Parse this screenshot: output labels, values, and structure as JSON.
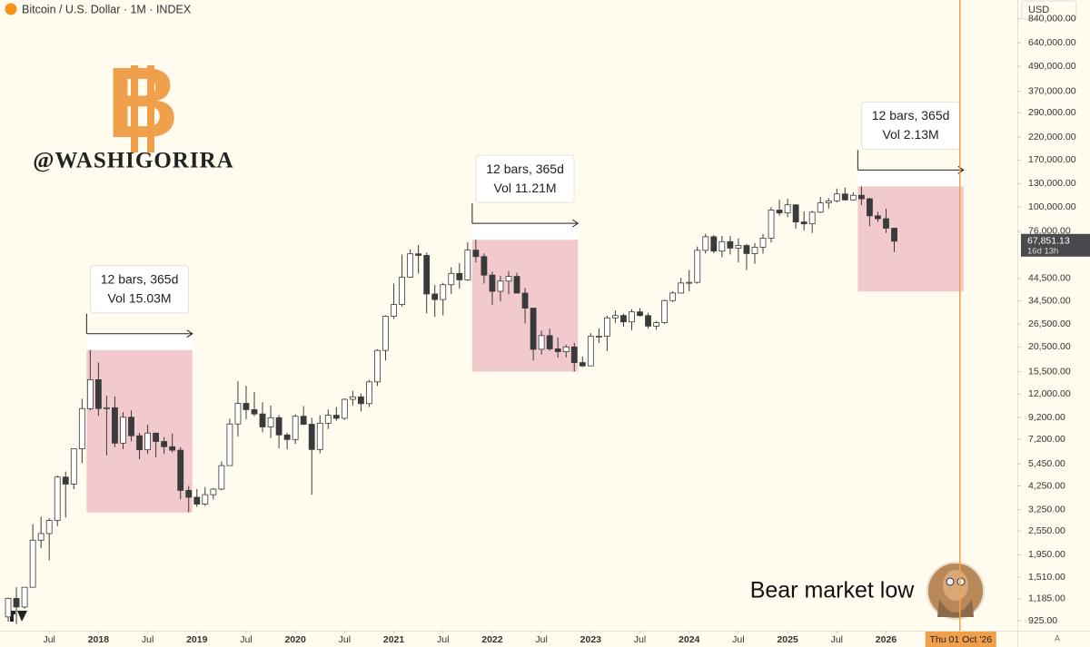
{
  "chart_data": {
    "type": "candlestick",
    "title": "Bitcoin / U.S. Dollar · 1M · INDEX",
    "currency": "USD",
    "x": [
      "2017-02",
      "2017-03",
      "2017-04",
      "2017-05",
      "2017-06",
      "2017-07",
      "2017-08",
      "2017-09",
      "2017-10",
      "2017-11",
      "2017-12",
      "2018-01",
      "2018-02",
      "2018-03",
      "2018-04",
      "2018-05",
      "2018-06",
      "2018-07",
      "2018-08",
      "2018-09",
      "2018-10",
      "2018-11",
      "2018-12",
      "2019-01",
      "2019-02",
      "2019-03",
      "2019-04",
      "2019-05",
      "2019-06",
      "2019-07",
      "2019-08",
      "2019-09",
      "2019-10",
      "2019-11",
      "2019-12",
      "2020-01",
      "2020-02",
      "2020-03",
      "2020-04",
      "2020-05",
      "2020-06",
      "2020-07",
      "2020-08",
      "2020-09",
      "2020-10",
      "2020-11",
      "2020-12",
      "2021-01",
      "2021-02",
      "2021-03",
      "2021-04",
      "2021-05",
      "2021-06",
      "2021-07",
      "2021-08",
      "2021-09",
      "2021-10",
      "2021-11",
      "2021-12",
      "2022-01",
      "2022-02",
      "2022-03",
      "2022-04",
      "2022-05",
      "2022-06",
      "2022-07",
      "2022-08",
      "2022-09",
      "2022-10",
      "2022-11",
      "2022-12",
      "2023-01",
      "2023-02",
      "2023-03",
      "2023-04",
      "2023-05",
      "2023-06",
      "2023-07",
      "2023-08",
      "2023-09",
      "2023-10",
      "2023-11",
      "2023-12",
      "2024-01",
      "2024-02",
      "2024-03",
      "2024-04",
      "2024-05",
      "2024-06",
      "2024-07",
      "2024-08",
      "2024-09",
      "2024-10",
      "2024-11",
      "2024-12",
      "2025-01",
      "2025-02",
      "2025-03",
      "2025-04",
      "2025-05",
      "2025-06",
      "2025-07",
      "2025-08",
      "2025-09",
      "2025-10",
      "2025-11",
      "2025-12",
      "2026-01",
      "2026-02"
    ],
    "open": [
      965,
      1190,
      1080,
      1350,
      2300,
      2480,
      2875,
      4700,
      4340,
      6470,
      10200,
      14150,
      10200,
      10300,
      6900,
      9250,
      7500,
      6400,
      7730,
      7030,
      6625,
      6370,
      4040,
      3740,
      3460,
      3850,
      4100,
      5350,
      8570,
      10820,
      10080,
      9600,
      8290,
      9200,
      7570,
      7190,
      9350,
      8540,
      6420,
      8640,
      9460,
      9140,
      11330,
      11650,
      10790,
      13800,
      19700,
      28990,
      33140,
      45140,
      58800,
      57750,
      37330,
      35040,
      41460,
      47100,
      43800,
      61300,
      57000,
      46200,
      38480,
      43190,
      45540,
      37700,
      31800,
      19950,
      23300,
      20050,
      19430,
      20500,
      17170,
      16540,
      23140,
      23150,
      28480,
      29250,
      27220,
      30480,
      29230,
      25940,
      26970,
      34650,
      37730,
      42270,
      42580,
      61180,
      71330,
      60640,
      67500,
      62700,
      64600,
      58970,
      63330,
      70200,
      96450,
      93400,
      102400,
      84350,
      82550,
      94200,
      104600,
      107100,
      115800,
      108250,
      114050,
      109600,
      90400,
      87500,
      78600
    ],
    "high": [
      1200,
      1350,
      1350,
      2760,
      3000,
      2950,
      4770,
      5000,
      6470,
      11400,
      19800,
      17200,
      11800,
      11700,
      9800,
      9990,
      7760,
      8500,
      7760,
      7400,
      7680,
      6600,
      4250,
      4100,
      4200,
      4150,
      5600,
      9100,
      13880,
      13200,
      12320,
      10950,
      10550,
      9500,
      7750,
      9560,
      10500,
      9200,
      9460,
      10080,
      10380,
      11450,
      12470,
      12090,
      14100,
      19940,
      29300,
      41950,
      58350,
      61800,
      64900,
      59600,
      41300,
      42400,
      50500,
      52900,
      67000,
      69000,
      59100,
      47990,
      45800,
      48200,
      47450,
      40000,
      31950,
      24650,
      25200,
      22800,
      20990,
      21480,
      18400,
      23950,
      25250,
      29200,
      31000,
      29850,
      31400,
      31800,
      30200,
      27500,
      35000,
      38450,
      44730,
      48950,
      63900,
      73800,
      72800,
      71950,
      72000,
      70000,
      65600,
      66500,
      73600,
      99800,
      108300,
      109600,
      102750,
      95000,
      95700,
      112000,
      110500,
      123200,
      124400,
      117900,
      126200,
      111000,
      94600,
      97900,
      79000
    ],
    "low": [
      915,
      890,
      1060,
      1350,
      2100,
      1830,
      2700,
      2970,
      4100,
      5500,
      10000,
      9400,
      6000,
      6600,
      6450,
      7050,
      5750,
      6100,
      5880,
      6100,
      6200,
      3650,
      3150,
      3350,
      3390,
      3650,
      4050,
      5330,
      7450,
      9070,
      9350,
      7800,
      7300,
      6500,
      6430,
      6850,
      8450,
      3850,
      6150,
      8100,
      8900,
      8980,
      10560,
      9880,
      10380,
      13200,
      17600,
      28130,
      32300,
      45000,
      47000,
      30000,
      28800,
      29300,
      37400,
      39600,
      43300,
      53300,
      42000,
      32900,
      34300,
      37200,
      37700,
      26700,
      17600,
      18800,
      19600,
      18150,
      18200,
      15500,
      16300,
      16500,
      21400,
      19550,
      26950,
      25800,
      24800,
      28900,
      25200,
      24900,
      26550,
      34100,
      37600,
      38500,
      41880,
      59000,
      59200,
      56550,
      58400,
      53500,
      49000,
      52550,
      58900,
      66800,
      90500,
      89200,
      78200,
      76600,
      74400,
      93300,
      98200,
      105100,
      107300,
      107250,
      102000,
      80500,
      84400,
      74500,
      60000
    ],
    "close": [
      1190,
      1080,
      1350,
      2300,
      2480,
      2875,
      4700,
      4340,
      6470,
      10200,
      14150,
      10200,
      10300,
      6900,
      9250,
      7500,
      6400,
      7730,
      7030,
      6625,
      6370,
      4040,
      3740,
      3460,
      3850,
      4100,
      5350,
      8570,
      10820,
      10080,
      9600,
      8290,
      9200,
      7570,
      7190,
      9350,
      8540,
      6420,
      8640,
      9460,
      9140,
      11330,
      11650,
      10790,
      13800,
      19700,
      28990,
      33140,
      45140,
      58800,
      57750,
      37330,
      35040,
      41460,
      47100,
      43800,
      61300,
      57000,
      46200,
      38480,
      43190,
      45540,
      37700,
      31800,
      19950,
      23300,
      20050,
      19430,
      20500,
      17170,
      16540,
      23140,
      23150,
      28480,
      29250,
      27220,
      30480,
      29230,
      25940,
      26970,
      34650,
      37730,
      42270,
      42580,
      61180,
      71330,
      60640,
      67500,
      62700,
      64600,
      58970,
      63330,
      70200,
      96450,
      93400,
      102400,
      84350,
      82550,
      94200,
      104600,
      107100,
      115800,
      108250,
      114050,
      109600,
      90400,
      87500,
      78600,
      67851.13
    ],
    "last_price": {
      "value": 67851.13,
      "label": "67,851.13"
    },
    "countdown": "16d 13h",
    "up_color": "#ffffff",
    "down_color": "#3a3a3c",
    "log_scale": true,
    "xlim": [
      "2017-01",
      "2027-05"
    ],
    "ylim": [
      826,
      1040000
    ],
    "yticks": [
      {
        "value": 925,
        "label": "925.00"
      },
      {
        "value": 1185,
        "label": "1,185.00"
      },
      {
        "value": 1510,
        "label": "1,510.00"
      },
      {
        "value": 1950,
        "label": "1,950.00"
      },
      {
        "value": 2550,
        "label": "2,550.00"
      },
      {
        "value": 3250,
        "label": "3,250.00"
      },
      {
        "value": 4250,
        "label": "4,250.00"
      },
      {
        "value": 5450,
        "label": "5,450.00"
      },
      {
        "value": 7200,
        "label": "7,200.00"
      },
      {
        "value": 9200,
        "label": "9,200.00"
      },
      {
        "value": 12000,
        "label": "12,000.00"
      },
      {
        "value": 15500,
        "label": "15,500.00"
      },
      {
        "value": 20500,
        "label": "20,500.00"
      },
      {
        "value": 26500,
        "label": "26,500.00"
      },
      {
        "value": 34500,
        "label": "34,500.00"
      },
      {
        "value": 44500,
        "label": "44,500.00"
      },
      {
        "value": 76000,
        "label": "76,000.00"
      },
      {
        "value": 100000,
        "label": "100,000.00"
      },
      {
        "value": 130000,
        "label": "130,000.00"
      },
      {
        "value": 170000,
        "label": "170,000.00"
      },
      {
        "value": 220000,
        "label": "220,000.00"
      },
      {
        "value": 290000,
        "label": "290,000.00"
      },
      {
        "value": 370000,
        "label": "370,000.00"
      },
      {
        "value": 490000,
        "label": "490,000.00"
      },
      {
        "value": 640000,
        "label": "640,000.00"
      },
      {
        "value": 840000,
        "label": "840,000.00"
      }
    ],
    "xticks": [
      {
        "value": "2017-07",
        "label": "Jul"
      },
      {
        "value": "2018-01",
        "label": "2018"
      },
      {
        "value": "2018-07",
        "label": "Jul"
      },
      {
        "value": "2019-01",
        "label": "2019"
      },
      {
        "value": "2019-07",
        "label": "Jul"
      },
      {
        "value": "2020-01",
        "label": "2020"
      },
      {
        "value": "2020-07",
        "label": "Jul"
      },
      {
        "value": "2021-01",
        "label": "2021"
      },
      {
        "value": "2021-07",
        "label": "Jul"
      },
      {
        "value": "2022-01",
        "label": "2022"
      },
      {
        "value": "2022-07",
        "label": "Jul"
      },
      {
        "value": "2023-01",
        "label": "2023"
      },
      {
        "value": "2023-07",
        "label": "Jul"
      },
      {
        "value": "2024-01",
        "label": "2024"
      },
      {
        "value": "2024-07",
        "label": "Jul"
      },
      {
        "value": "2025-01",
        "label": "2025"
      },
      {
        "value": "2025-07",
        "label": "Jul"
      },
      {
        "value": "2026-01",
        "label": "2026"
      }
    ],
    "grid": false,
    "measures": [
      {
        "start": "2017-12",
        "end": "2018-12",
        "high": 19800,
        "low": 3150,
        "bars": "12 bars, 365d",
        "volume": "Vol 15.03M"
      },
      {
        "start": "2021-11",
        "end": "2022-11",
        "high": 69000,
        "low": 15500,
        "bars": "12 bars, 365d",
        "volume": "Vol 11.21M"
      },
      {
        "start": "2025-10",
        "end": "2026-10",
        "high": 126200,
        "low": 38400,
        "bars": "12 bars, 365d",
        "volume": "Vol 2.13M"
      }
    ],
    "marker": {
      "date": "2026-10",
      "label": "Thu 01 Oct '26",
      "color": "#f0a04b"
    },
    "measure_color": "#f2c9cc"
  },
  "overlay": {
    "symbol": "B",
    "handle": "@WASHIGORIRA",
    "caption": "Bear market low",
    "scale_mode": "A"
  }
}
